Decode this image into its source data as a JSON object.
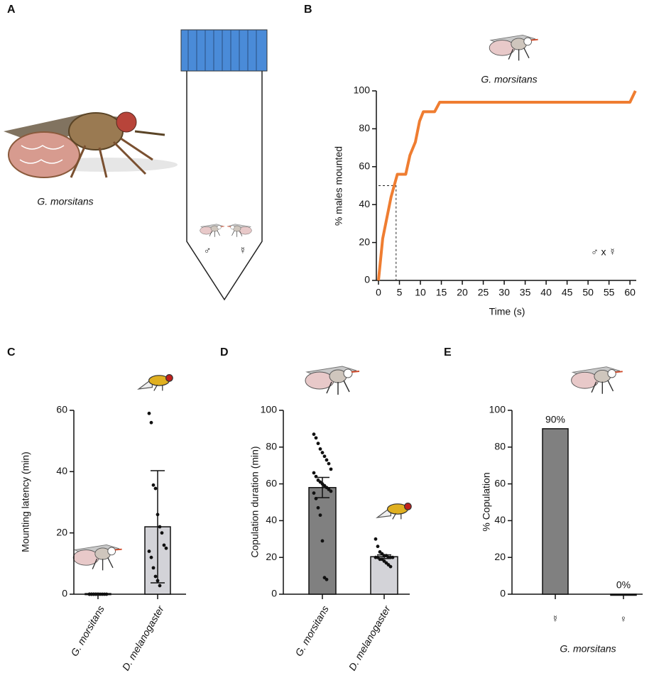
{
  "panel_a": {
    "panel": "A",
    "caption": "G. morsitans",
    "symbols": [
      "♂",
      "☿"
    ]
  },
  "chart_data": [
    {
      "type": "line",
      "panel": "B",
      "title": "G. morsitans",
      "y_label": "% males  mounted",
      "x_label": "Time (s)",
      "x": [
        0,
        1,
        2,
        3,
        4,
        4.5,
        6.5,
        7.5,
        8.8,
        9.8,
        10.7,
        13.4,
        14.6,
        60,
        61.3
      ],
      "values": [
        0,
        22,
        33,
        44,
        52,
        56,
        56,
        66,
        73,
        84,
        89,
        89,
        94,
        94,
        100
      ],
      "color": "#ef7d31",
      "xlim": [
        0,
        61.5
      ],
      "ylim": [
        0,
        100
      ],
      "xticks": [
        0,
        5,
        10,
        15,
        20,
        25,
        30,
        35,
        40,
        45,
        50,
        55,
        60
      ],
      "yticks": [
        0,
        20,
        40,
        60,
        80,
        100
      ],
      "reference": {
        "x": 4.2,
        "y": 50
      },
      "annotation": "♂ x ☿"
    },
    {
      "type": "bar",
      "panel": "C",
      "y_label": "Mounting latency (min)",
      "categories": [
        "G. morsitans",
        "D. melanogaster"
      ],
      "values": [
        0.2,
        22
      ],
      "errors": [
        0,
        18.3
      ],
      "colors": [
        "#d3d3d8",
        "#d3d3d8"
      ],
      "points": [
        [
          0,
          0,
          0,
          0,
          0,
          0,
          0,
          0,
          0,
          0,
          0,
          0,
          0,
          0
        ],
        [
          59,
          56,
          35.6,
          34.5,
          26,
          22,
          20,
          16,
          15,
          14,
          12,
          8.6,
          5.8,
          4.4,
          2.8
        ]
      ],
      "ylim": [
        0,
        60
      ],
      "yticks": [
        0,
        20,
        40,
        60
      ]
    },
    {
      "type": "bar",
      "panel": "D",
      "y_label": "Copulation duration (min)",
      "categories": [
        "G. morsitans",
        "D. melanogaster"
      ],
      "values": [
        58,
        20.4
      ],
      "errors": [
        5.5,
        1
      ],
      "colors": [
        "#808080",
        "#d3d3d8"
      ],
      "points": [
        [
          87,
          85,
          82,
          79,
          77,
          75,
          73,
          71,
          68,
          66,
          64,
          62,
          61,
          60,
          59,
          58,
          57,
          56,
          55,
          52,
          47,
          43,
          29,
          9,
          8
        ],
        [
          30,
          26,
          23,
          22,
          21,
          21,
          20,
          20,
          20,
          20,
          20,
          19,
          19,
          18,
          17,
          16,
          15
        ]
      ],
      "ylim": [
        0,
        100
      ],
      "yticks": [
        0,
        20,
        40,
        60,
        80,
        100
      ]
    },
    {
      "type": "bar",
      "panel": "E",
      "y_label": "% Copulation",
      "x_label": "G. morsitans",
      "categories": [
        "☿",
        "♀"
      ],
      "values": [
        90,
        0
      ],
      "value_labels": [
        "90%",
        "0%"
      ],
      "colors": [
        "#808080",
        "#808080"
      ],
      "ylim": [
        0,
        100
      ],
      "yticks": [
        0,
        20,
        40,
        60,
        80,
        100
      ]
    }
  ]
}
